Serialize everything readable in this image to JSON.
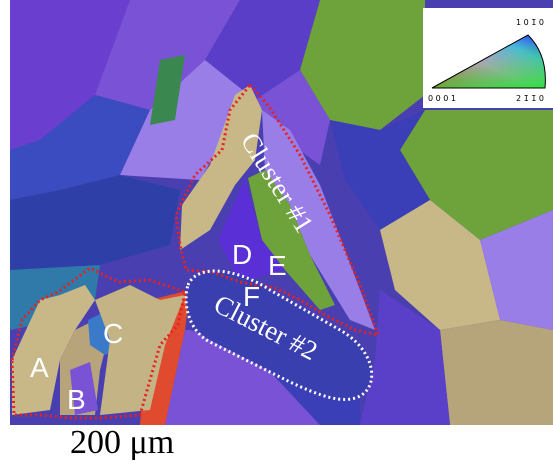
{
  "grain_labels": [
    "A",
    "B",
    "C",
    "D",
    "E",
    "F"
  ],
  "cluster_labels": [
    "Cluster #1",
    "Cluster #2"
  ],
  "legend": {
    "corner_left": "0 0 0 1",
    "corner_right": "2 1̄ 1̄ 0",
    "corner_top": "1 0 1̄ 0"
  },
  "scale_bar": {
    "label": "200 μm"
  },
  "colors": {
    "cluster1_outline": "#e8201e",
    "cluster2_outline": "#ffffff",
    "grain_purple": "#6a3fd0",
    "grain_blue": "#3a3fb8",
    "grain_tan": "#c8b888",
    "grain_green": "#6ea23a"
  }
}
